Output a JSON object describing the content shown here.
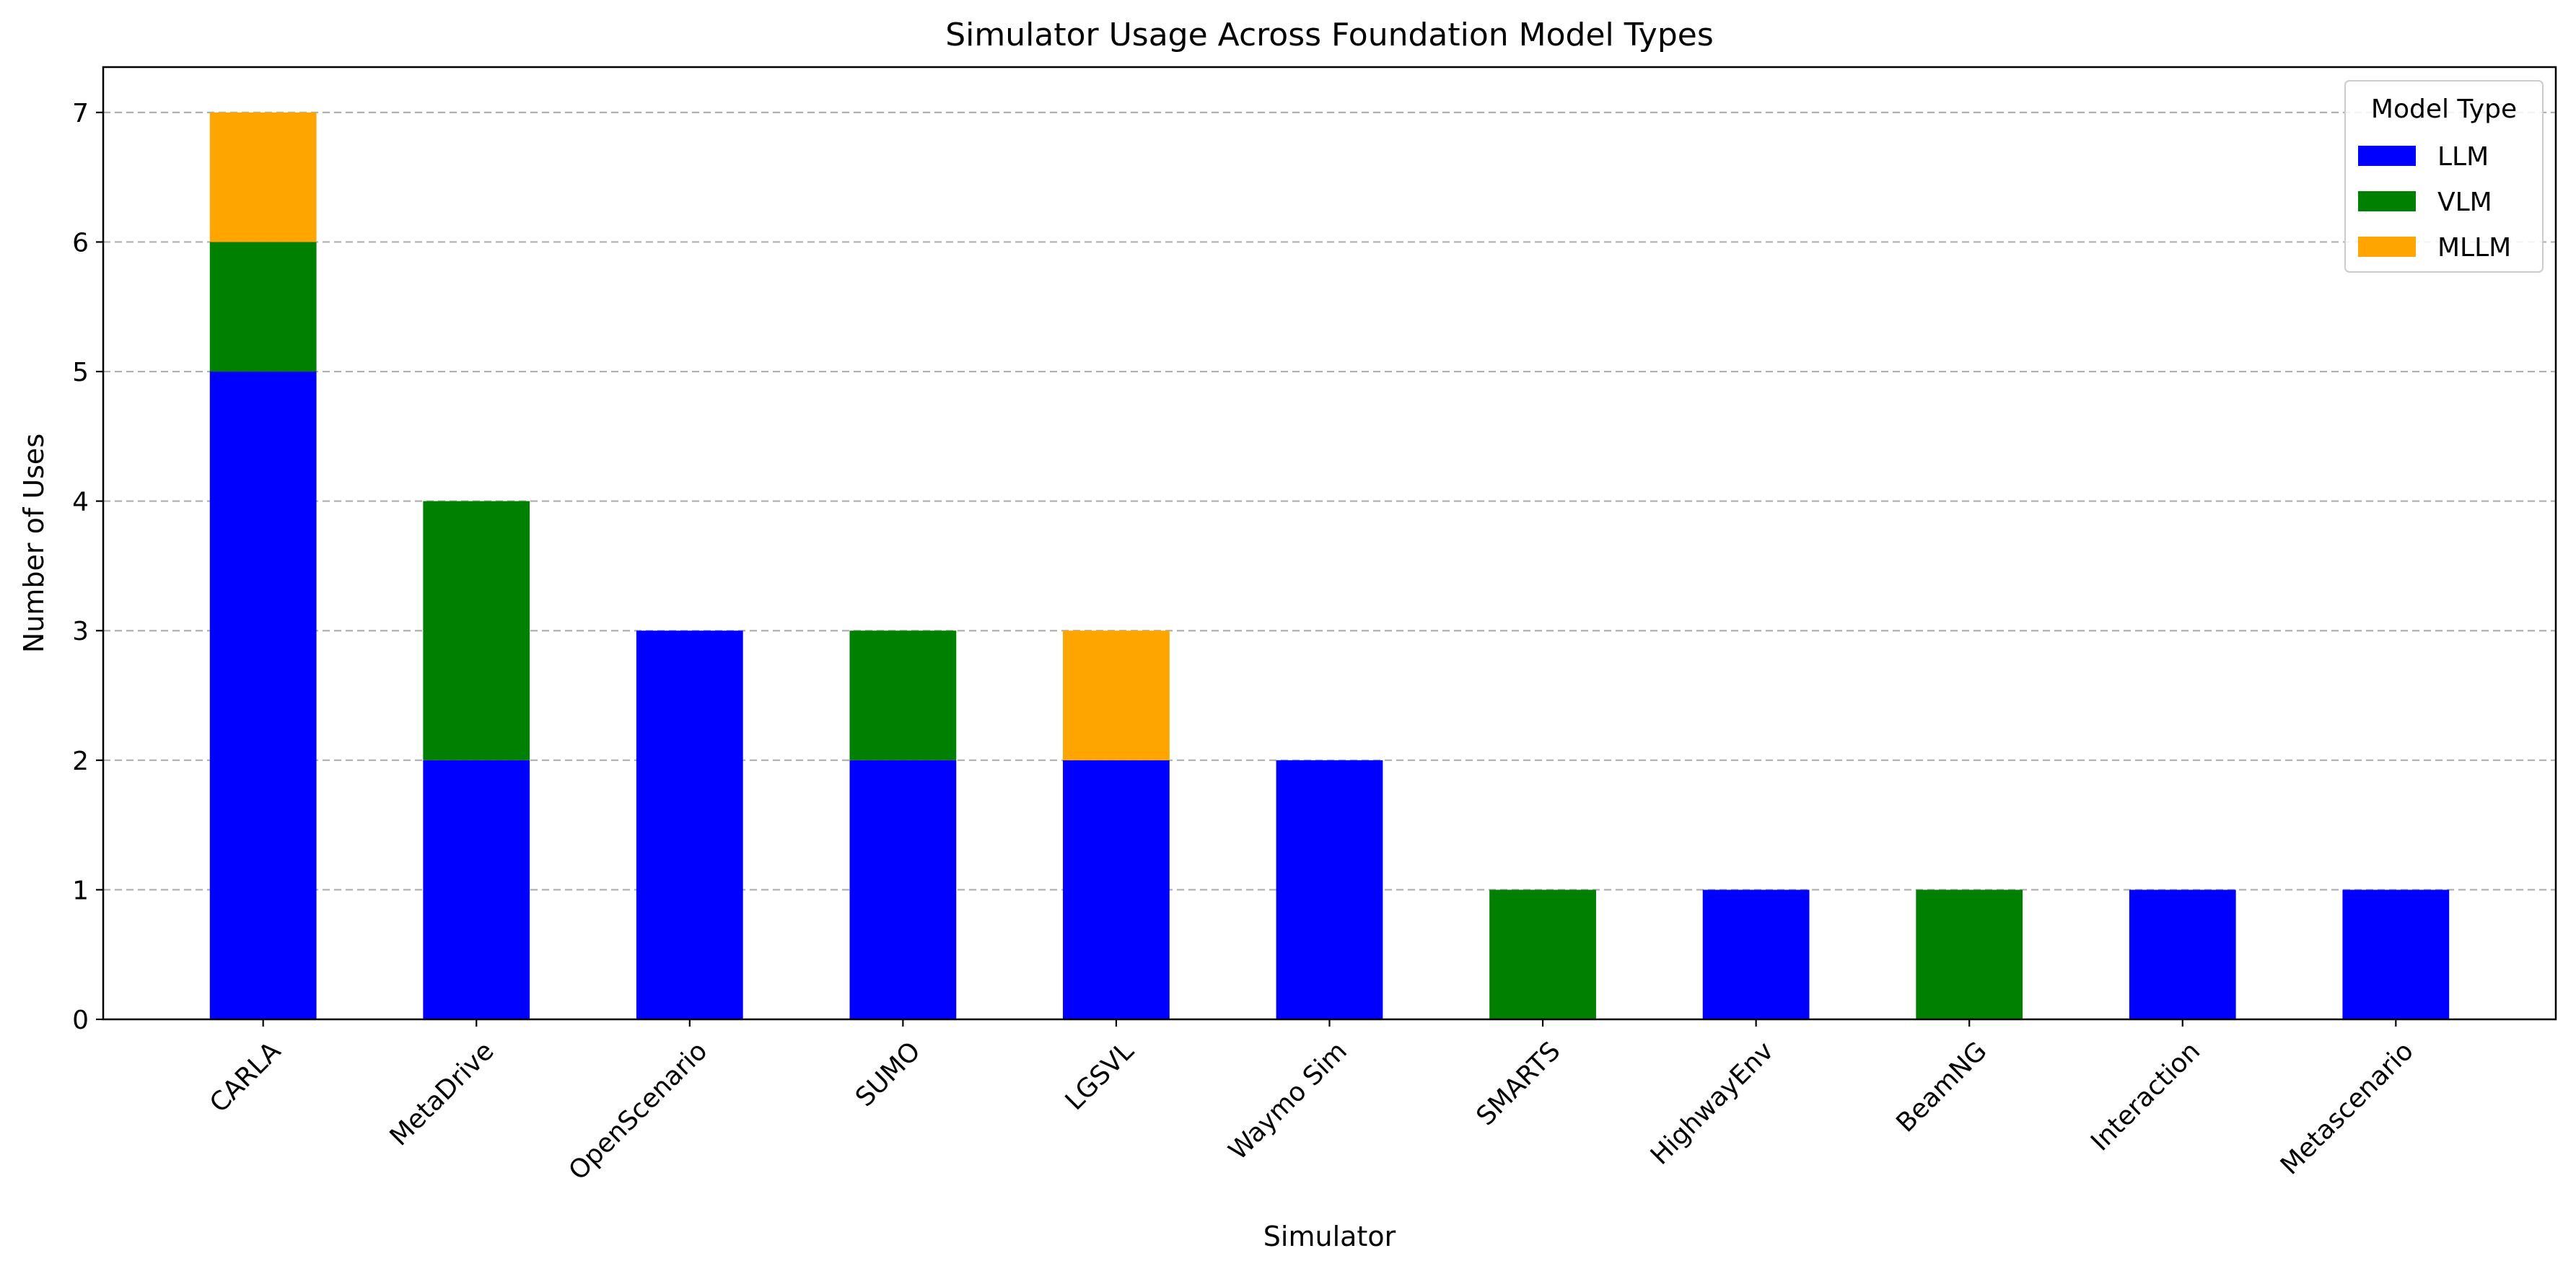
{
  "chart_data": {
    "type": "bar",
    "stacked": true,
    "title": "Simulator Usage Across Foundation Model Types",
    "xlabel": "Simulator",
    "ylabel": "Number of Uses",
    "ylim": [
      0,
      7.35
    ],
    "yticks": [
      0,
      1,
      2,
      3,
      4,
      5,
      6,
      7
    ],
    "grid": "y-dashed",
    "categories": [
      "CARLA",
      "MetaDrive",
      "OpenScenario",
      "SUMO",
      "LGSVL",
      "Waymo Sim",
      "SMARTS",
      "HighwayEnv",
      "BeamNG",
      "Interaction",
      "Metascenario"
    ],
    "series": [
      {
        "name": "LLM",
        "color": "#0000ff",
        "values": [
          5,
          2,
          3,
          2,
          2,
          2,
          0,
          1,
          0,
          1,
          1
        ]
      },
      {
        "name": "VLM",
        "color": "#008000",
        "values": [
          1,
          2,
          0,
          1,
          0,
          0,
          1,
          0,
          1,
          0,
          0
        ]
      },
      {
        "name": "MLLM",
        "color": "#ffa500",
        "values": [
          1,
          0,
          0,
          0,
          1,
          0,
          0,
          0,
          0,
          0,
          0
        ]
      }
    ],
    "legend": {
      "title": "Model Type",
      "placement": "top-right"
    }
  }
}
